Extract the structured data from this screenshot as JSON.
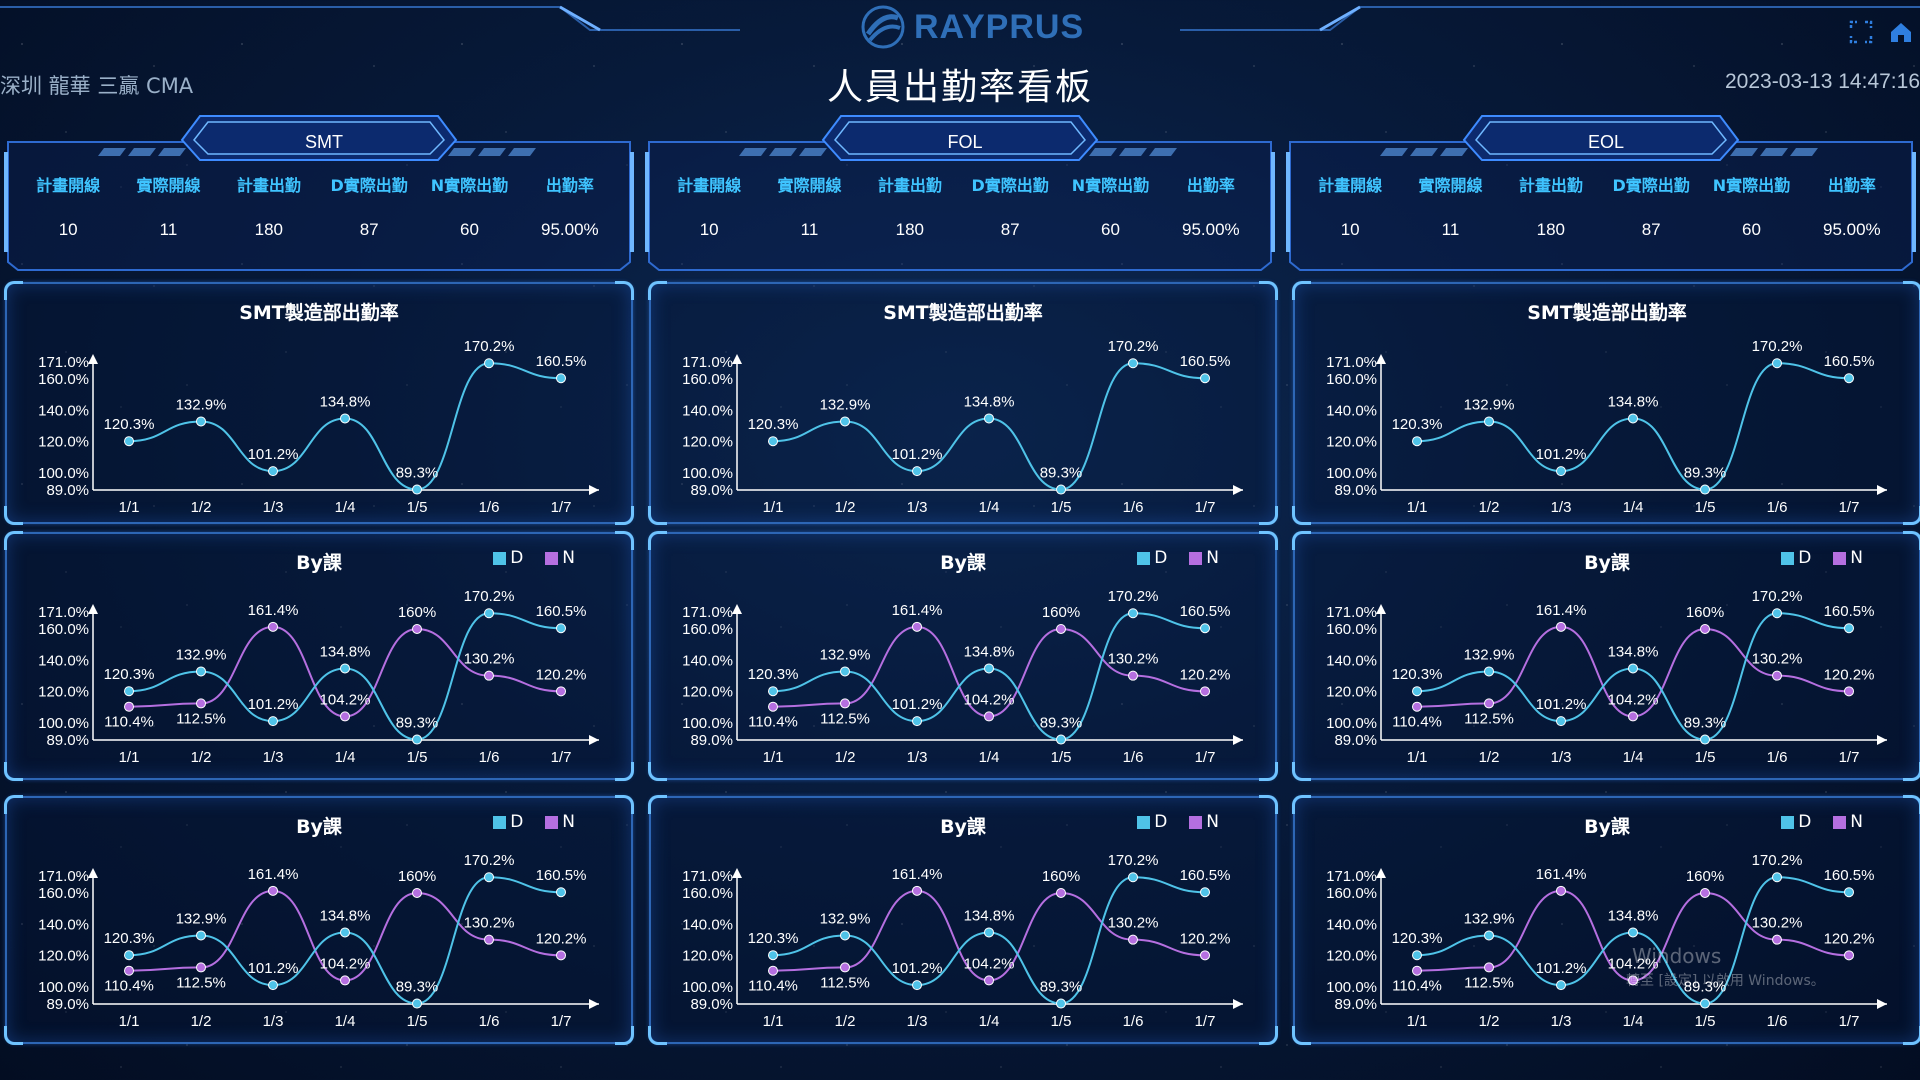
{
  "header": {
    "logo_text": "RAYPRUS",
    "title": "人員出勤率看板",
    "site": "深圳 龍華 三贏 CMA",
    "datetime": "2023-03-13 14:47:16"
  },
  "icons": {
    "fullscreen": "fullscreen-icon",
    "home": "home-icon"
  },
  "colors": {
    "d": "#4fc3e8",
    "n": "#b56fe0",
    "accent": "#3fc4ff"
  },
  "sections": [
    {
      "tab": "SMT",
      "headers": [
        "計畫開線",
        "實際開線",
        "計畫出勤",
        "D實際出勤",
        "N實際出勤",
        "出勤率"
      ],
      "values": [
        "10",
        "11",
        "180",
        "87",
        "60",
        "95.00%"
      ]
    },
    {
      "tab": "FOL",
      "headers": [
        "計畫開線",
        "實際開線",
        "計畫出勤",
        "D實際出勤",
        "N實際出勤",
        "出勤率"
      ],
      "values": [
        "10",
        "11",
        "180",
        "87",
        "60",
        "95.00%"
      ]
    },
    {
      "tab": "EOL",
      "headers": [
        "計畫開線",
        "實際開線",
        "計畫出勤",
        "D實際出勤",
        "N實際出勤",
        "出勤率"
      ],
      "values": [
        "10",
        "11",
        "180",
        "87",
        "60",
        "95.00%"
      ]
    }
  ],
  "panels": {
    "rate_title": "SMT製造部出勤率",
    "class_title": "By課",
    "legend_d": "D",
    "legend_n": "N"
  },
  "chart_data": [
    {
      "type": "line",
      "title": "SMT製造部出勤率",
      "categories": [
        "1/1",
        "1/2",
        "1/3",
        "1/4",
        "1/5",
        "1/6",
        "1/7"
      ],
      "y_ticks": [
        "89.0%",
        "100.0%",
        "120.0%",
        "140.0%",
        "160.0%",
        "171.0%"
      ],
      "ylim": [
        89,
        171
      ],
      "series": [
        {
          "values": [
            120.3,
            132.9,
            101.2,
            134.8,
            89.3,
            170.2,
            160.5
          ],
          "labels": [
            "120.3%",
            "132.9%",
            "101.2%",
            "134.8%",
            "89.3%",
            "170.2%",
            "160.5%"
          ]
        }
      ]
    },
    {
      "type": "line",
      "title": "By課",
      "categories": [
        "1/1",
        "1/2",
        "1/3",
        "1/4",
        "1/5",
        "1/6",
        "1/7"
      ],
      "y_ticks": [
        "89.0%",
        "100.0%",
        "120.0%",
        "140.0%",
        "160.0%",
        "171.0%"
      ],
      "ylim": [
        89,
        171
      ],
      "series": [
        {
          "name": "D",
          "values": [
            120.3,
            132.9,
            101.2,
            134.8,
            89.3,
            170.2,
            160.5
          ],
          "labels": [
            "120.3%",
            "132.9%",
            "101.2%",
            "134.8%",
            "89.3%",
            "170.2%",
            "160.5%"
          ]
        },
        {
          "name": "N",
          "values": [
            110.4,
            112.5,
            161.4,
            104.2,
            160,
            130.2,
            120.2
          ],
          "labels": [
            "110.4%",
            "112.5%",
            "161.4%",
            "104.2%",
            "160%",
            "130.2%",
            "120.2%"
          ]
        }
      ]
    }
  ],
  "watermark": {
    "line1": "Windows",
    "line2": "轉至 [設定] 以啟用 Windows。"
  }
}
